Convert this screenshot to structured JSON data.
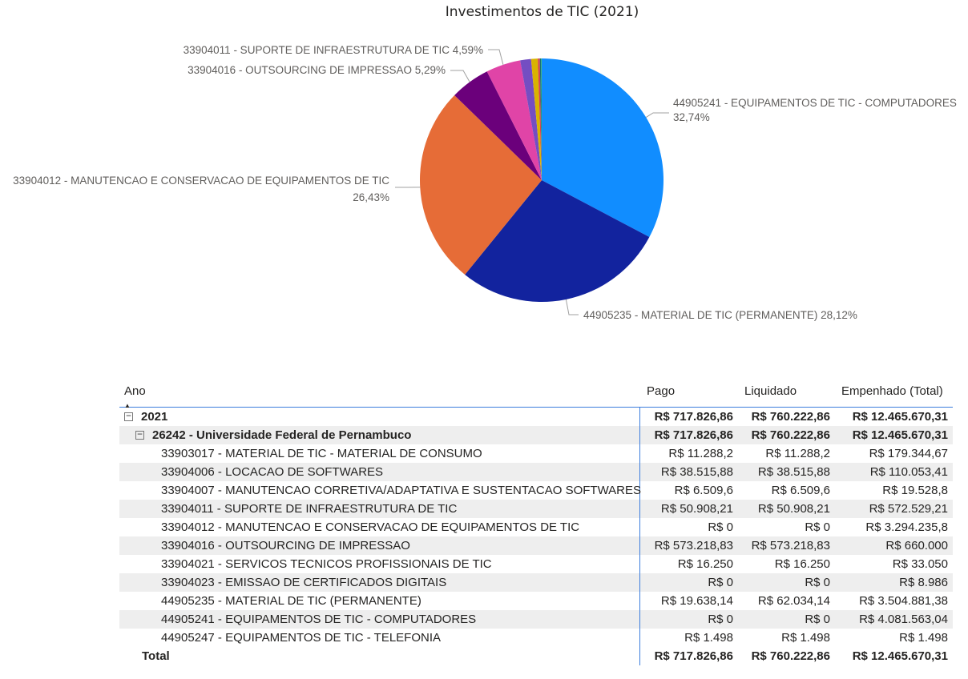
{
  "chart_data": {
    "type": "pie",
    "title": "Investimentos de TIC (2021)",
    "slices": [
      {
        "label": "44905241 - EQUIPAMENTOS DE TIC - COMPUTADORES",
        "pct_label": "32,74%",
        "value": 32.74,
        "color": "#118DFF"
      },
      {
        "label": "44905235 - MATERIAL DE TIC (PERMANENTE)",
        "pct_label": "28,12%",
        "value": 28.12,
        "color": "#12239E"
      },
      {
        "label": "33904012 - MANUTENCAO E CONSERVACAO DE EQUIPAMENTOS DE TIC",
        "pct_label": "26,43%",
        "value": 26.43,
        "color": "#E66C37"
      },
      {
        "label": "33904016 - OUTSOURCING DE IMPRESSAO",
        "pct_label": "5,29%",
        "value": 5.29,
        "color": "#6B007B"
      },
      {
        "label": "33904011 - SUPORTE DE INFRAESTRUTURA DE TIC",
        "pct_label": "4,59%",
        "value": 4.59,
        "color": "#E044A7"
      },
      {
        "label": "33903017 - MATERIAL DE TIC - MATERIAL DE CONSUMO",
        "pct_label": "",
        "value": 1.44,
        "color": "#744EC2"
      },
      {
        "label": "33904006 - LOCACAO DE SOFTWARES",
        "pct_label": "",
        "value": 0.88,
        "color": "#D9B300"
      },
      {
        "label": "33904021 - SERVICOS TECNICOS PROFISSIONAIS DE TIC",
        "pct_label": "",
        "value": 0.27,
        "color": "#D64550"
      },
      {
        "label": "33904007 - MANUTENCAO CORRETIVA/ADAPTATIVA E SUSTENTACAO SOFTWARES",
        "pct_label": "",
        "value": 0.16,
        "color": "#197278"
      },
      {
        "label": "33904023 - EMISSAO DE CERTIFICADOS DIGITAIS",
        "pct_label": "",
        "value": 0.07,
        "color": "#1AAB40"
      },
      {
        "label": "44905247 - EQUIPAMENTOS DE TIC - TELEFONIA",
        "pct_label": "",
        "value": 0.01,
        "color": "#15C6F4"
      }
    ]
  },
  "matrix": {
    "headers": {
      "ano": "Ano",
      "pago": "Pago",
      "liquidado": "Liquidado",
      "empenhado": "Empenhado (Total)"
    },
    "year_row": {
      "expander": "⊟",
      "label": "2021",
      "pago": "R$ 717.826,86",
      "liquidado": "R$ 760.222,86",
      "empenhado": "R$ 12.465.670,31"
    },
    "org_row": {
      "expander": "⊟",
      "label": "26242 - Universidade Federal de Pernambuco",
      "pago": "R$ 717.826,86",
      "liquidado": "R$ 760.222,86",
      "empenhado": "R$ 12.465.670,31"
    },
    "rows": [
      {
        "label": "33903017 - MATERIAL DE TIC - MATERIAL DE CONSUMO",
        "pago": "R$ 11.288,2",
        "liquidado": "R$ 11.288,2",
        "empenhado": "R$ 179.344,67"
      },
      {
        "label": "33904006 - LOCACAO DE SOFTWARES",
        "pago": "R$ 38.515,88",
        "liquidado": "R$ 38.515,88",
        "empenhado": "R$ 110.053,41"
      },
      {
        "label": "33904007 - MANUTENCAO CORRETIVA/ADAPTATIVA E SUSTENTACAO SOFTWARES",
        "pago": "R$ 6.509,6",
        "liquidado": "R$ 6.509,6",
        "empenhado": "R$ 19.528,8"
      },
      {
        "label": "33904011 - SUPORTE DE INFRAESTRUTURA DE TIC",
        "pago": "R$ 50.908,21",
        "liquidado": "R$ 50.908,21",
        "empenhado": "R$ 572.529,21"
      },
      {
        "label": "33904012 - MANUTENCAO E CONSERVACAO DE EQUIPAMENTOS DE TIC",
        "pago": "R$ 0",
        "liquidado": "R$ 0",
        "empenhado": "R$ 3.294.235,8"
      },
      {
        "label": "33904016 - OUTSOURCING DE IMPRESSAO",
        "pago": "R$ 573.218,83",
        "liquidado": "R$ 573.218,83",
        "empenhado": "R$ 660.000"
      },
      {
        "label": "33904021 - SERVICOS TECNICOS PROFISSIONAIS DE TIC",
        "pago": "R$ 16.250",
        "liquidado": "R$ 16.250",
        "empenhado": "R$ 33.050"
      },
      {
        "label": "33904023 - EMISSAO DE CERTIFICADOS DIGITAIS",
        "pago": "R$ 0",
        "liquidado": "R$ 0",
        "empenhado": "R$ 8.986"
      },
      {
        "label": "44905235 - MATERIAL DE TIC (PERMANENTE)",
        "pago": "R$ 19.638,14",
        "liquidado": "R$ 62.034,14",
        "empenhado": "R$ 3.504.881,38"
      },
      {
        "label": "44905241 - EQUIPAMENTOS DE TIC - COMPUTADORES",
        "pago": "R$ 0",
        "liquidado": "R$ 0",
        "empenhado": "R$ 4.081.563,04"
      },
      {
        "label": "44905247 - EQUIPAMENTOS DE TIC - TELEFONIA",
        "pago": "R$ 1.498",
        "liquidado": "R$ 1.498",
        "empenhado": "R$ 1.498"
      }
    ],
    "total_row": {
      "label": "Total",
      "pago": "R$ 717.826,86",
      "liquidado": "R$ 760.222,86",
      "empenhado": "R$ 12.465.670,31"
    }
  }
}
